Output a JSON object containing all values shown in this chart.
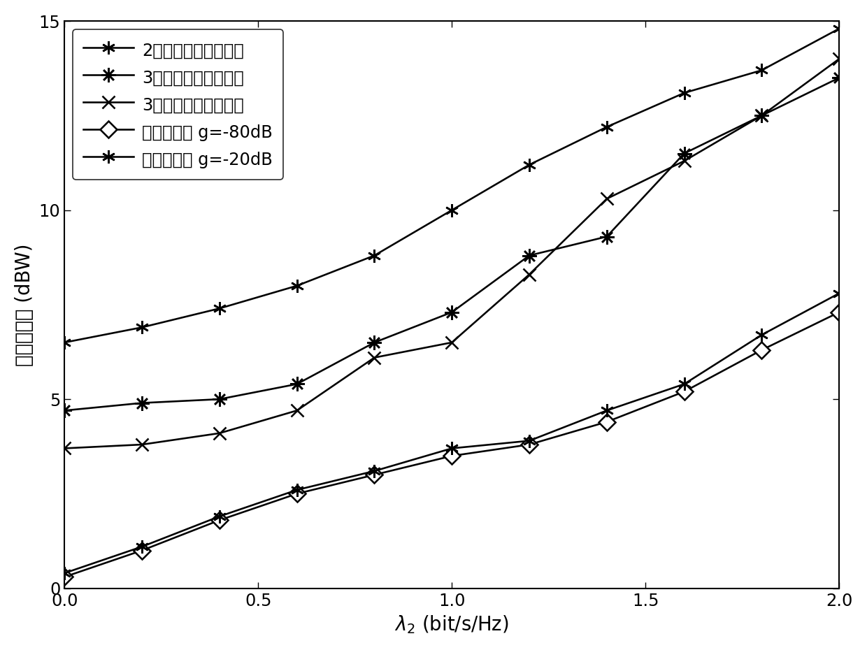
{
  "x": [
    0,
    0.2,
    0.4,
    0.6,
    0.8,
    1.0,
    1.2,
    1.4,
    1.6,
    1.8,
    2.0
  ],
  "series": {
    "2slot_AF_HD": [
      6.5,
      6.9,
      7.4,
      8.0,
      8.8,
      10.0,
      11.2,
      12.2,
      13.1,
      13.7,
      14.8
    ],
    "3slot_NC_HD": [
      4.7,
      4.9,
      5.0,
      5.4,
      6.5,
      7.3,
      8.8,
      9.3,
      11.5,
      12.5,
      13.5
    ],
    "3slot_SC_HD": [
      3.7,
      3.8,
      4.1,
      4.7,
      6.1,
      6.5,
      8.3,
      10.3,
      11.3,
      12.5,
      14.0
    ],
    "proposed_80dB": [
      0.3,
      1.0,
      1.8,
      2.5,
      3.0,
      3.5,
      3.8,
      4.4,
      5.2,
      6.3,
      7.3
    ],
    "proposed_20dB": [
      0.4,
      1.1,
      1.9,
      2.6,
      3.1,
      3.7,
      3.9,
      4.7,
      5.4,
      6.7,
      7.8
    ]
  },
  "labels": {
    "2slot_AF_HD": "2时隙放大转发半双工",
    "3slot_NC_HD": "3时隙网络编码半双工",
    "3slot_SC_HD": "3时隙叠加编码半双工",
    "proposed_80dB": "所提算法， g=-80dB",
    "proposed_20dB": "所提算法， g=-20dB"
  },
  "xlabel": "$\\lambda_2$ (bit/s/Hz)",
  "ylabel": "总发射功率 (dBW)",
  "xlim": [
    0,
    2.0
  ],
  "ylim": [
    0,
    15
  ],
  "xticks": [
    0,
    0.5,
    1.0,
    1.5,
    2.0
  ],
  "yticks": [
    0,
    5,
    10,
    15
  ],
  "background_color": "#ffffff",
  "line_color": "#000000",
  "label_fontsize": 16,
  "tick_fontsize": 14,
  "legend_fontsize": 14
}
